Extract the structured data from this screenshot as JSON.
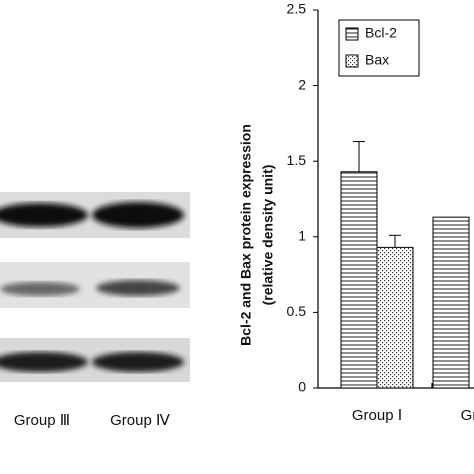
{
  "blot": {
    "lanes": [
      "Group Ⅲ",
      "Group Ⅳ"
    ]
  },
  "chart_data": {
    "type": "bar",
    "y_label": [
      "Bcl-2 and Bax protein expression",
      "(relative density unit)"
    ],
    "categories": [
      "Group Ⅰ",
      "Gr"
    ],
    "series": [
      {
        "name": "Bcl-2",
        "color": "#000000",
        "pattern": "stripes",
        "values": [
          1.43,
          1.13
        ],
        "errors": [
          0.2,
          null
        ]
      },
      {
        "name": "Bax",
        "color": "#000000",
        "pattern": "dots",
        "values": [
          0.93,
          null
        ],
        "errors": [
          0.08,
          null
        ]
      }
    ],
    "ylim": [
      0,
      2.5
    ],
    "yticks": [
      0,
      0.5,
      1,
      1.5,
      2,
      2.5
    ],
    "grid": false
  }
}
